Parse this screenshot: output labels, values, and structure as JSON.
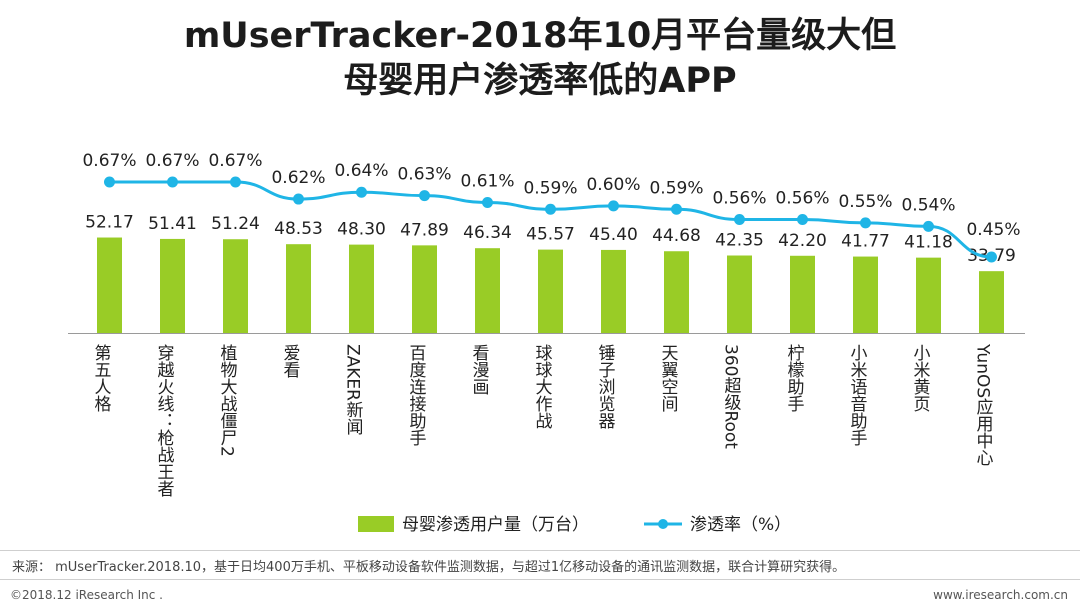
{
  "page": {
    "title_line1": "mUserTracker-2018年10月平台量级大但",
    "title_line2": "母婴用户渗透率低的APP",
    "source": "来源： mUserTracker.2018.10，基于日均400万手机、平板移动设备软件监测数据，与超过1亿移动设备的通讯监测数据，联合计算研究获得。",
    "footer_left": "©2018.12 iResearch Inc .",
    "footer_right": "www.iresearch.com.cn"
  },
  "colors": {
    "bar": "#99cc26",
    "line": "#1fb5e6",
    "axis": "#9a9a9a"
  },
  "chart_data": {
    "type": "bar+line",
    "categories": [
      "第五人格",
      "穿越火线：枪战王者",
      "植物大战僵尸2",
      "爱看",
      "ZAKER新闻",
      "百度连接助手",
      "看漫画",
      "球球大作战",
      "锤子浏览器",
      "天翼空间",
      "360超级Root",
      "柠檬助手",
      "小米语音助手",
      "小米黄页",
      "YunOS应用中心"
    ],
    "series": [
      {
        "name": "母婴渗透用户量（万台）",
        "type": "bar",
        "values": [
          52.17,
          51.41,
          51.24,
          48.53,
          48.3,
          47.89,
          46.34,
          45.57,
          45.4,
          44.68,
          42.35,
          42.2,
          41.77,
          41.18,
          33.79
        ],
        "labels": [
          "52.17",
          "51.41",
          "51.24",
          "48.53",
          "48.30",
          "47.89",
          "46.34",
          "45.57",
          "45.40",
          "44.68",
          "42.35",
          "42.20",
          "41.77",
          "41.18",
          "33.79"
        ]
      },
      {
        "name": "渗透率（%）",
        "type": "line",
        "values": [
          0.67,
          0.67,
          0.67,
          0.62,
          0.64,
          0.63,
          0.61,
          0.59,
          0.6,
          0.59,
          0.56,
          0.56,
          0.55,
          0.54,
          0.45
        ],
        "labels": [
          "0.67%",
          "0.67%",
          "0.67%",
          "0.62%",
          "0.64%",
          "0.63%",
          "0.61%",
          "0.59%",
          "0.60%",
          "0.59%",
          "0.56%",
          "0.56%",
          "0.55%",
          "0.54%",
          "0.45%"
        ]
      }
    ],
    "legend": "bottom-center"
  }
}
